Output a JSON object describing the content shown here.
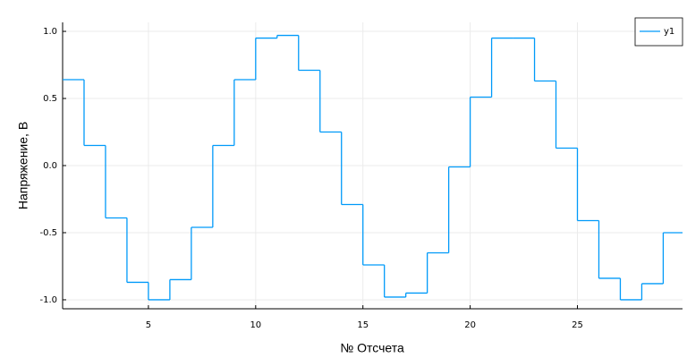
{
  "chart_data": {
    "type": "step",
    "xlabel": "№ Отсчета",
    "ylabel": "Напряжение, B",
    "x": [
      1,
      2,
      3,
      4,
      5,
      6,
      7,
      8,
      9,
      10,
      11,
      12,
      13,
      14,
      15,
      16,
      17,
      18,
      19,
      20,
      21,
      22,
      23,
      24,
      25,
      26,
      27,
      28,
      29
    ],
    "series": [
      {
        "name": "y1",
        "color": "#009af9",
        "values": [
          0.64,
          0.15,
          -0.39,
          -0.87,
          -1.0,
          -0.85,
          -0.46,
          0.15,
          0.64,
          0.95,
          0.97,
          0.71,
          0.25,
          -0.29,
          -0.74,
          -0.98,
          -0.95,
          -0.65,
          -0.01,
          0.51,
          0.95,
          0.95,
          0.63,
          0.13,
          -0.41,
          -0.84,
          -1.0,
          -0.88,
          -0.5
        ]
      }
    ],
    "xlim": [
      1,
      29.9
    ],
    "ylim": [
      -1.067,
      1.067
    ],
    "xticks": [
      5,
      10,
      15,
      20,
      25
    ],
    "yticks": [
      {
        "value": -1,
        "label": "-1.0"
      },
      {
        "value": -0.5,
        "label": "-0.5"
      },
      {
        "value": 0,
        "label": "0.0"
      },
      {
        "value": 0.5,
        "label": "0.5"
      },
      {
        "value": 1,
        "label": "1.0"
      }
    ],
    "grid": true,
    "legend": "top-right"
  }
}
